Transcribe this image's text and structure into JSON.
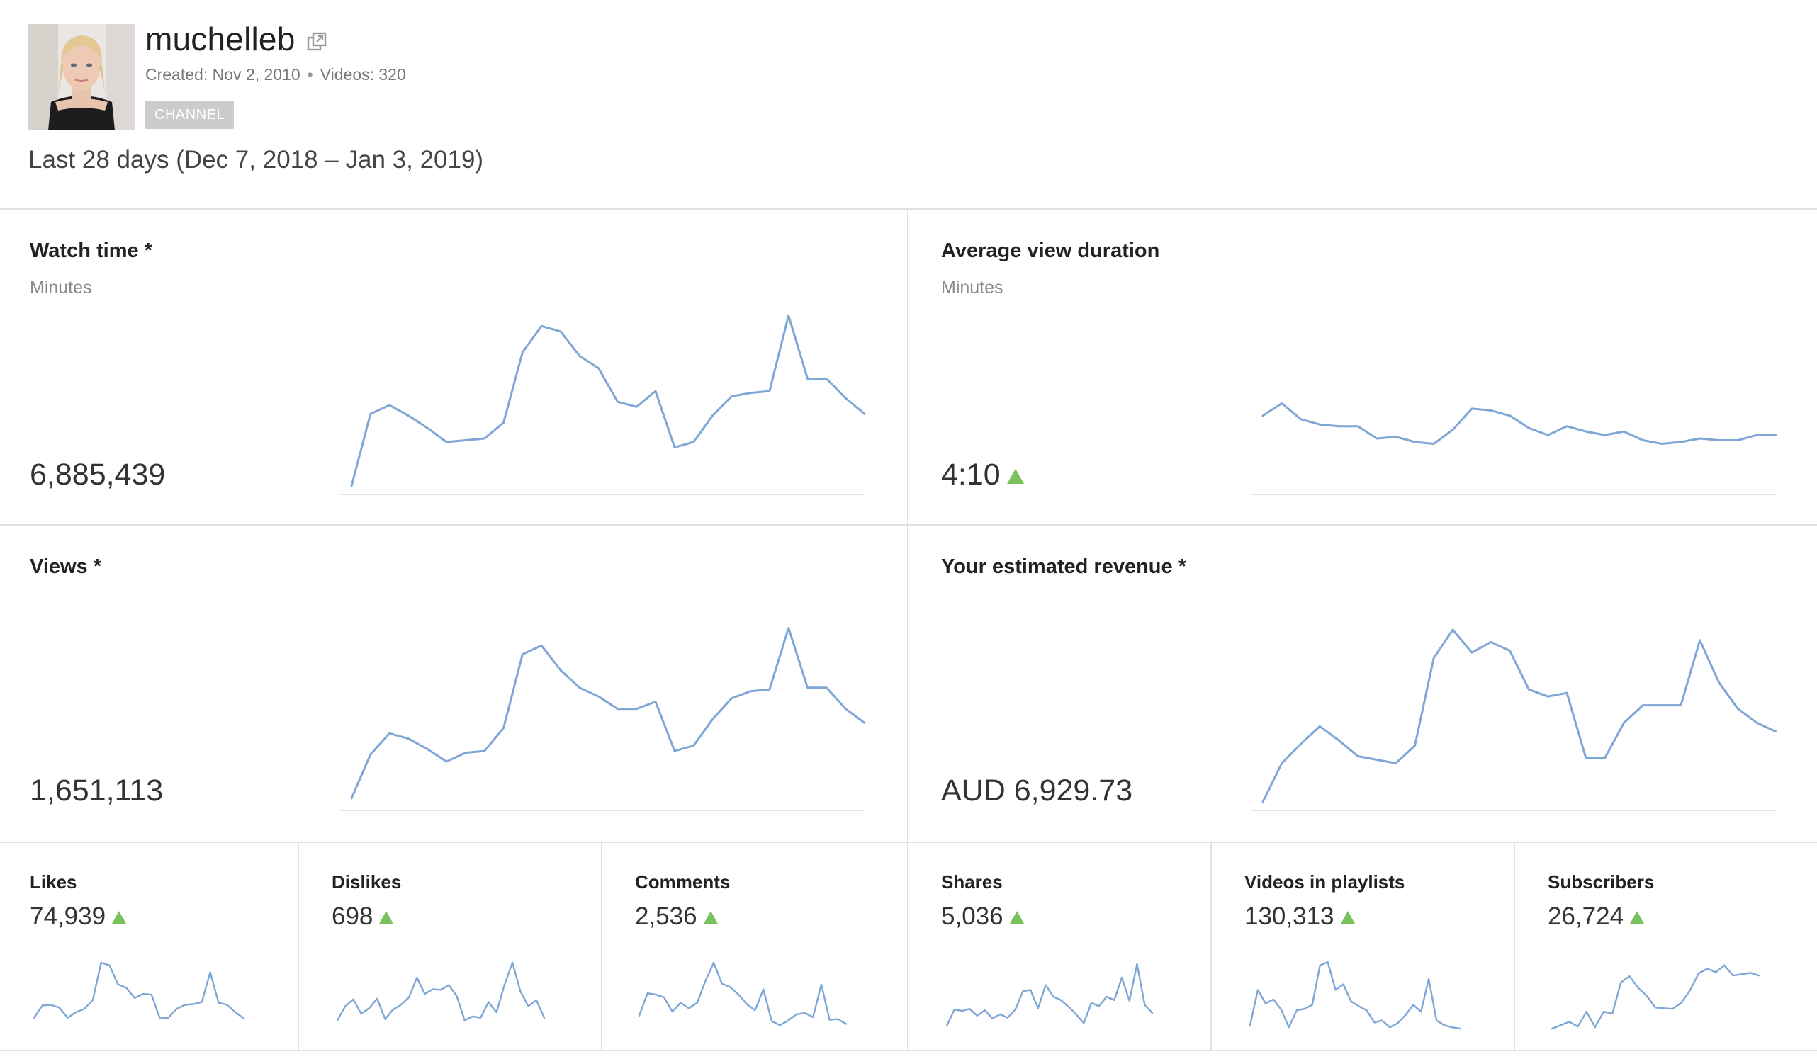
{
  "channel": {
    "name": "muchelleb",
    "created": "Created: Nov 2, 2010",
    "videos": "Videos: 320",
    "badge": "CHANNEL",
    "separator": "•"
  },
  "date_range": "Last 28 days (Dec 7, 2018 – Jan 3, 2019)",
  "colors": {
    "sparkline": "#7ea6d6",
    "trend_up": "#79c25b",
    "badge_bg": "#cccccc"
  },
  "icons": {
    "external_link": "external-link-icon",
    "trend_up": "trend-up-icon"
  },
  "metrics": {
    "watch_time": {
      "title": "Watch time *",
      "unit": "Minutes",
      "value": "6,885,439",
      "trend": ""
    },
    "avg_view_duration": {
      "title": "Average view duration",
      "unit": "Minutes",
      "value": "4:10",
      "trend": "up"
    },
    "views": {
      "title": "Views *",
      "value": "1,651,113",
      "trend": ""
    },
    "revenue": {
      "title": "Your estimated revenue *",
      "value": "AUD 6,929.73",
      "trend": ""
    }
  },
  "small_metrics": [
    {
      "key": "likes",
      "title": "Likes",
      "value": "74,939",
      "trend": "up"
    },
    {
      "key": "dislikes",
      "title": "Dislikes",
      "value": "698",
      "trend": "up"
    },
    {
      "key": "comments",
      "title": "Comments",
      "value": "2,536",
      "trend": "up"
    },
    {
      "key": "shares",
      "title": "Shares",
      "value": "5,036",
      "trend": "up"
    },
    {
      "key": "videos_in_playlists",
      "title": "Videos in playlists",
      "value": "130,313",
      "trend": "up"
    },
    {
      "key": "subscribers",
      "title": "Subscribers",
      "value": "26,724",
      "trend": "up"
    }
  ],
  "chart_data": [
    {
      "type": "line",
      "name": "watch_time",
      "values": [
        0.0,
        0.41,
        0.46,
        0.4,
        0.33,
        0.25,
        0.26,
        0.27,
        0.36,
        0.76,
        0.91,
        0.88,
        0.74,
        0.67,
        0.48,
        0.45,
        0.54,
        0.22,
        0.25,
        0.4,
        0.51,
        0.53,
        0.54,
        0.97,
        0.61,
        0.61,
        0.5,
        0.41
      ]
    },
    {
      "type": "line",
      "name": "avg_view_duration",
      "values": [
        0.4,
        0.47,
        0.38,
        0.35,
        0.34,
        0.34,
        0.27,
        0.28,
        0.25,
        0.24,
        0.32,
        0.44,
        0.43,
        0.4,
        0.33,
        0.29,
        0.34,
        0.31,
        0.29,
        0.31,
        0.26,
        0.24,
        0.25,
        0.27,
        0.26,
        0.26,
        0.29,
        0.29
      ]
    },
    {
      "type": "line",
      "name": "views",
      "values": [
        0.02,
        0.27,
        0.39,
        0.36,
        0.3,
        0.23,
        0.28,
        0.29,
        0.42,
        0.84,
        0.89,
        0.75,
        0.65,
        0.6,
        0.53,
        0.53,
        0.57,
        0.29,
        0.32,
        0.47,
        0.59,
        0.63,
        0.64,
        0.99,
        0.65,
        0.65,
        0.53,
        0.45
      ]
    },
    {
      "type": "line",
      "name": "revenue",
      "values": [
        0.0,
        0.22,
        0.33,
        0.43,
        0.35,
        0.26,
        0.24,
        0.22,
        0.32,
        0.82,
        0.98,
        0.85,
        0.91,
        0.86,
        0.64,
        0.6,
        0.62,
        0.25,
        0.25,
        0.45,
        0.55,
        0.55,
        0.55,
        0.92,
        0.68,
        0.53,
        0.45,
        0.4
      ]
    },
    {
      "type": "line",
      "name": "likes",
      "values": [
        0.18,
        0.36,
        0.37,
        0.33,
        0.18,
        0.26,
        0.31,
        0.44,
        0.99,
        0.95,
        0.67,
        0.62,
        0.47,
        0.53,
        0.52,
        0.17,
        0.18,
        0.31,
        0.37,
        0.38,
        0.41,
        0.85,
        0.4,
        0.37,
        0.26,
        0.17
      ]
    },
    {
      "type": "line",
      "name": "dislikes",
      "values": [
        0.14,
        0.35,
        0.45,
        0.24,
        0.32,
        0.46,
        0.16,
        0.3,
        0.37,
        0.48,
        0.77,
        0.53,
        0.6,
        0.59,
        0.66,
        0.5,
        0.14,
        0.2,
        0.18,
        0.41,
        0.26,
        0.66,
        0.99,
        0.57,
        0.35,
        0.44,
        0.18
      ]
    },
    {
      "type": "line",
      "name": "comments",
      "values": [
        0.21,
        0.54,
        0.52,
        0.48,
        0.27,
        0.4,
        0.32,
        0.4,
        0.72,
        0.99,
        0.68,
        0.63,
        0.52,
        0.38,
        0.29,
        0.6,
        0.13,
        0.07,
        0.14,
        0.23,
        0.25,
        0.19,
        0.67,
        0.15,
        0.16,
        0.09
      ]
    },
    {
      "type": "line",
      "name": "shares",
      "values": [
        0.06,
        0.3,
        0.28,
        0.31,
        0.21,
        0.29,
        0.17,
        0.23,
        0.18,
        0.3,
        0.57,
        0.59,
        0.32,
        0.66,
        0.49,
        0.44,
        0.34,
        0.23,
        0.1,
        0.4,
        0.35,
        0.49,
        0.44,
        0.77,
        0.43,
        0.97,
        0.37,
        0.25
      ]
    },
    {
      "type": "line",
      "name": "videos_in_playlists",
      "values": [
        0.07,
        0.59,
        0.39,
        0.45,
        0.3,
        0.04,
        0.29,
        0.31,
        0.37,
        0.95,
        1.0,
        0.59,
        0.67,
        0.42,
        0.35,
        0.29,
        0.11,
        0.14,
        0.04,
        0.1,
        0.22,
        0.37,
        0.27,
        0.75,
        0.14,
        0.07,
        0.04,
        0.02
      ]
    },
    {
      "type": "line",
      "name": "subscribers",
      "values": [
        0.02,
        0.07,
        0.12,
        0.05,
        0.27,
        0.04,
        0.27,
        0.24,
        0.7,
        0.79,
        0.62,
        0.5,
        0.33,
        0.32,
        0.31,
        0.4,
        0.58,
        0.83,
        0.9,
        0.85,
        0.95,
        0.8,
        0.82,
        0.84,
        0.8
      ]
    }
  ]
}
